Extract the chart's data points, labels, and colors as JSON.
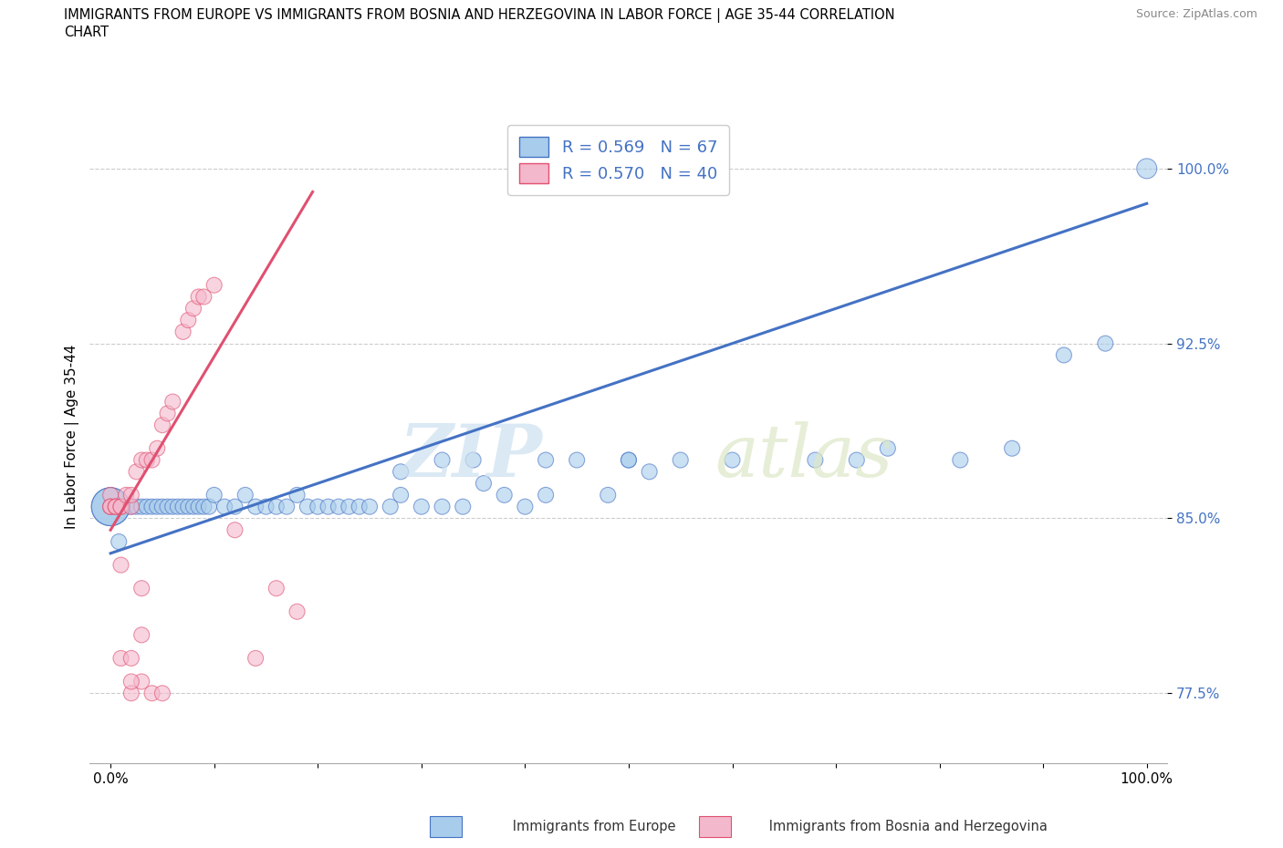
{
  "title": "IMMIGRANTS FROM EUROPE VS IMMIGRANTS FROM BOSNIA AND HERZEGOVINA IN LABOR FORCE | AGE 35-44 CORRELATION\nCHART",
  "source_text": "Source: ZipAtlas.com",
  "ylabel": "In Labor Force | Age 35-44",
  "xlim": [
    -0.02,
    1.02
  ],
  "ylim": [
    0.745,
    1.025
  ],
  "yticks": [
    0.775,
    0.85,
    0.925,
    1.0
  ],
  "ytick_labels": [
    "77.5%",
    "85.0%",
    "92.5%",
    "100.0%"
  ],
  "xticks": [
    0.0,
    0.1,
    0.2,
    0.3,
    0.4,
    0.5,
    0.6,
    0.7,
    0.8,
    0.9,
    1.0
  ],
  "xtick_labels": [
    "0.0%",
    "",
    "",
    "",
    "",
    "",
    "",
    "",
    "",
    "",
    "100.0%"
  ],
  "grid_color": "#cccccc",
  "background_color": "#ffffff",
  "color_blue": "#a8cceb",
  "color_pink": "#f4b8cc",
  "line_blue": "#4472c4",
  "line_pink": "#e05070",
  "blue_x": [
    0.005,
    0.008,
    0.01,
    0.015,
    0.02,
    0.025,
    0.03,
    0.035,
    0.04,
    0.045,
    0.05,
    0.055,
    0.06,
    0.065,
    0.07,
    0.075,
    0.08,
    0.085,
    0.09,
    0.095,
    0.1,
    0.11,
    0.12,
    0.13,
    0.14,
    0.15,
    0.16,
    0.17,
    0.18,
    0.19,
    0.2,
    0.21,
    0.22,
    0.23,
    0.24,
    0.25,
    0.27,
    0.28,
    0.3,
    0.32,
    0.34,
    0.36,
    0.38,
    0.4,
    0.42,
    0.45,
    0.48,
    0.5,
    0.52,
    0.55,
    0.32,
    0.28,
    0.35,
    0.42,
    0.5,
    0.6,
    0.68,
    0.72,
    0.75,
    0.82,
    0.87,
    0.92,
    0.96,
    0.0,
    0.0,
    0.0,
    1.0
  ],
  "blue_y": [
    0.855,
    0.84,
    0.855,
    0.855,
    0.855,
    0.855,
    0.855,
    0.855,
    0.855,
    0.855,
    0.855,
    0.855,
    0.855,
    0.855,
    0.855,
    0.855,
    0.855,
    0.855,
    0.855,
    0.855,
    0.86,
    0.855,
    0.855,
    0.86,
    0.855,
    0.855,
    0.855,
    0.855,
    0.86,
    0.855,
    0.855,
    0.855,
    0.855,
    0.855,
    0.855,
    0.855,
    0.855,
    0.86,
    0.855,
    0.855,
    0.855,
    0.865,
    0.86,
    0.855,
    0.86,
    0.875,
    0.86,
    0.875,
    0.87,
    0.875,
    0.875,
    0.87,
    0.875,
    0.875,
    0.875,
    0.875,
    0.875,
    0.875,
    0.88,
    0.875,
    0.88,
    0.92,
    0.925,
    0.855,
    0.855,
    0.855,
    1.0
  ],
  "blue_sizes": [
    150,
    150,
    150,
    150,
    150,
    150,
    150,
    150,
    150,
    150,
    150,
    150,
    150,
    150,
    150,
    150,
    150,
    150,
    150,
    150,
    150,
    150,
    150,
    150,
    150,
    150,
    150,
    150,
    150,
    150,
    150,
    150,
    150,
    150,
    150,
    150,
    150,
    150,
    150,
    150,
    150,
    150,
    150,
    150,
    150,
    150,
    150,
    150,
    150,
    150,
    150,
    150,
    150,
    150,
    150,
    150,
    150,
    150,
    150,
    150,
    150,
    150,
    150,
    900,
    900,
    900,
    250
  ],
  "pink_x": [
    0.0,
    0.0,
    0.0,
    0.0,
    0.005,
    0.005,
    0.005,
    0.01,
    0.01,
    0.015,
    0.02,
    0.02,
    0.025,
    0.03,
    0.035,
    0.04,
    0.045,
    0.05,
    0.055,
    0.06,
    0.07,
    0.075,
    0.08,
    0.085,
    0.09,
    0.1,
    0.12,
    0.14,
    0.16,
    0.18,
    0.03,
    0.04,
    0.05,
    0.02,
    0.01,
    0.02,
    0.03,
    0.01,
    0.02,
    0.03
  ],
  "pink_y": [
    0.855,
    0.86,
    0.855,
    0.855,
    0.855,
    0.855,
    0.855,
    0.855,
    0.855,
    0.86,
    0.855,
    0.86,
    0.87,
    0.875,
    0.875,
    0.875,
    0.88,
    0.89,
    0.895,
    0.9,
    0.93,
    0.935,
    0.94,
    0.945,
    0.945,
    0.95,
    0.845,
    0.79,
    0.82,
    0.81,
    0.78,
    0.775,
    0.775,
    0.775,
    0.79,
    0.78,
    0.82,
    0.83,
    0.79,
    0.8
  ],
  "pink_sizes": [
    150,
    150,
    150,
    150,
    150,
    150,
    150,
    150,
    150,
    150,
    150,
    150,
    150,
    150,
    150,
    150,
    150,
    150,
    150,
    150,
    150,
    150,
    150,
    150,
    150,
    150,
    150,
    150,
    150,
    150,
    150,
    150,
    150,
    150,
    150,
    150,
    150,
    150,
    150,
    150
  ],
  "blue_trend_x": [
    0.0,
    1.0
  ],
  "blue_trend_y": [
    0.835,
    0.985
  ],
  "pink_trend_x": [
    0.0,
    0.195
  ],
  "pink_trend_y": [
    0.845,
    0.99
  ]
}
